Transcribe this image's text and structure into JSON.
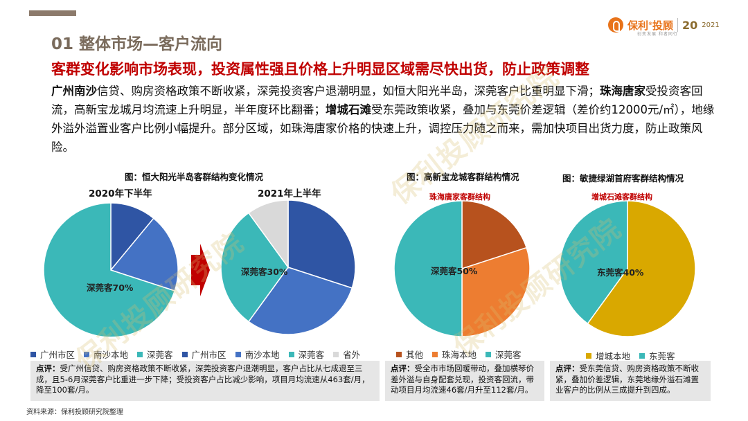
{
  "header": {
    "brand": "保利",
    "brand2": "投顾",
    "anniv": "20",
    "year": "2021",
    "tagline": "创变发展 和者同行"
  },
  "title": "01 整体市场—客户流向",
  "subtitle": "客群变化影响市场表现，投资属性强且价格上升明显区域需尽快出货，防止政策调整",
  "body": {
    "p1_bold": "广州南沙",
    "p1_text": "信贷、购房资格政策不断收紧，深莞投资客户退潮明显，如恒大阳光半岛，深莞客户比重明显下滑；",
    "p2_bold": "珠海唐家",
    "p2_text": "受投资客回流，高新宝龙城月均流速上升明显，半年度环比翻番；",
    "p3_bold": "增城石滩",
    "p3_text": "受东莞政策收紧，叠加与东莞价差逻辑（差价约12000元/㎡），地缘外溢外溢置业客户比例小幅提升。部分区域，如珠海唐家价格的快速上升，调控压力随之而来，需加快项目出货力度，防止政策风险。"
  },
  "captions": {
    "c1": "图：恒大阳光半岛客群结构变化情况",
    "c2": "图：高新宝龙城客群结构情况",
    "c3": "图：敏捷绿湖首府客群结构情况"
  },
  "pie_titles": {
    "p1": "2020年下半年",
    "p2": "2021年上半年",
    "p3": "珠海唐家客群结构",
    "p4": "增城石滩客群结构"
  },
  "chart_data": [
    {
      "type": "pie",
      "title": "2020年下半年",
      "categories": [
        "广州市区",
        "南沙本地",
        "深莞客"
      ],
      "values": [
        11,
        19,
        70
      ],
      "colors": [
        "#2f55a4",
        "#4472c4",
        "#3bb8b8"
      ],
      "data_labels": [
        "",
        "",
        "深莞客70%"
      ]
    },
    {
      "type": "pie",
      "title": "2021年上半年",
      "categories": [
        "广州市区",
        "南沙本地",
        "深莞客",
        "省外"
      ],
      "values": [
        30,
        30,
        30,
        10
      ],
      "colors": [
        "#2f55a4",
        "#4472c4",
        "#3bb8b8",
        "#d9d9d9"
      ],
      "data_labels": [
        "",
        "",
        "深莞客30%",
        ""
      ]
    },
    {
      "type": "pie",
      "title": "珠海唐家客群结构",
      "categories": [
        "其他",
        "珠海本地",
        "深莞客"
      ],
      "values": [
        20,
        30,
        50
      ],
      "colors": [
        "#b7521e",
        "#ed7d31",
        "#3bb8b8"
      ],
      "data_labels": [
        "",
        "",
        "深莞客50%"
      ]
    },
    {
      "type": "pie",
      "title": "增城石滩客群结构",
      "categories": [
        "增城本地",
        "东莞客"
      ],
      "values": [
        60,
        40
      ],
      "colors": [
        "#d9a800",
        "#3bb8b8"
      ],
      "data_labels": [
        "",
        "东莞客40%"
      ]
    }
  ],
  "legends": {
    "l1": [
      "广州市区",
      "南沙本地",
      "深莞客",
      "广州市区",
      "南沙本地",
      "深莞客",
      "省外"
    ],
    "l2": [
      "其他",
      "珠海本地",
      "深莞客"
    ],
    "l3": [
      "增城本地",
      "东莞客"
    ]
  },
  "notes": {
    "n1_label": "点评：",
    "n1_text": "受广州信贷、购房资格政策不断收紧，深莞投资客户退潮明显，客户占比从七成退至三成，且5-6月深莞客户比重进一步下降；受投资客户占比减少影响，项目月均流速从463套/月，降至100套/月。",
    "n2_label": "点评：",
    "n2_text": "受全市市场回暖带动，叠加横琴价差外溢与自身配套兑现，投资客回流，带动项目月均流速46套/月升至112套/月。",
    "n3_label": "点评：",
    "n3_text": "受东莞信贷、购房资格政策不断收紧，叠加价差逻辑，东莞地缘外溢石滩置业客户的比例从三成提升到四成。"
  },
  "source": "资料来源：保利投顾研究院整理",
  "watermark": "保利投顾研究院"
}
